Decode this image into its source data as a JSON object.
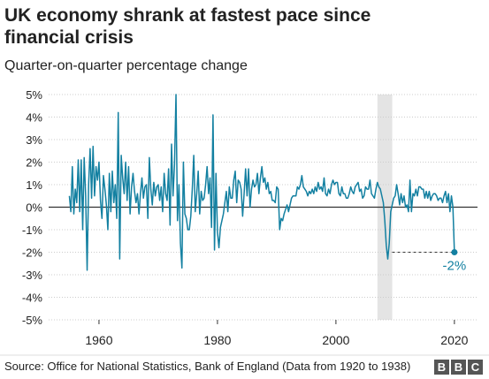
{
  "chart_data": {
    "type": "line",
    "title": [
      "UK economy shrank at fastest pace since",
      "financial crisis"
    ],
    "subtitle": "Quarter-on-quarter percentage change",
    "source": "Source: Office for National Statistics, Bank of England (Data from 1920 to 1938)",
    "logo": [
      "B",
      "B",
      "C"
    ],
    "color": "#1380a1",
    "shaded_period": [
      2007,
      2009.5
    ],
    "annotation": {
      "label": "-2%",
      "x": 2020,
      "y": -2
    },
    "xlim": [
      1951.5,
      2023.9
    ],
    "xticks": [
      1960,
      1980,
      2000,
      2020
    ],
    "ylim": [
      -5,
      5
    ],
    "yticks": [
      {
        "value": 5,
        "label": "5%"
      },
      {
        "value": 4,
        "label": "4%"
      },
      {
        "value": 3,
        "label": "3%"
      },
      {
        "value": 2,
        "label": "2%"
      },
      {
        "value": 1,
        "label": "1%"
      },
      {
        "value": 0,
        "label": "0%"
      },
      {
        "value": -1,
        "label": "-1%"
      },
      {
        "value": -2,
        "label": "-2%"
      },
      {
        "value": -3,
        "label": "-3%"
      },
      {
        "value": -4,
        "label": "-4%"
      },
      {
        "value": -5,
        "label": "-5%"
      }
    ],
    "grid": true,
    "x": [
      1955,
      1955.25,
      1955.5,
      1955.75,
      1956,
      1956.25,
      1956.5,
      1956.75,
      1957,
      1957.25,
      1957.5,
      1957.75,
      1958,
      1958.25,
      1958.5,
      1958.75,
      1959,
      1959.25,
      1959.5,
      1959.75,
      1960,
      1960.25,
      1960.5,
      1960.75,
      1961,
      1961.25,
      1961.5,
      1961.75,
      1962,
      1962.25,
      1962.5,
      1962.75,
      1963,
      1963.25,
      1963.5,
      1963.75,
      1964,
      1964.25,
      1964.5,
      1964.75,
      1965,
      1965.25,
      1965.5,
      1965.75,
      1966,
      1966.25,
      1966.5,
      1966.75,
      1967,
      1967.25,
      1967.5,
      1967.75,
      1968,
      1968.25,
      1968.5,
      1968.75,
      1969,
      1969.25,
      1969.5,
      1969.75,
      1970,
      1970.25,
      1970.5,
      1970.75,
      1971,
      1971.25,
      1971.5,
      1971.75,
      1972,
      1972.25,
      1972.5,
      1972.75,
      1973,
      1973.25,
      1973.5,
      1973.75,
      1974,
      1974.25,
      1974.5,
      1974.75,
      1975,
      1975.25,
      1975.5,
      1975.75,
      1976,
      1976.25,
      1976.5,
      1976.75,
      1977,
      1977.25,
      1977.5,
      1977.75,
      1978,
      1978.25,
      1978.5,
      1978.75,
      1979,
      1979.25,
      1979.5,
      1979.75,
      1980,
      1980.25,
      1980.5,
      1980.75,
      1981,
      1981.25,
      1981.5,
      1981.75,
      1982,
      1982.25,
      1982.5,
      1982.75,
      1983,
      1983.25,
      1983.5,
      1983.75,
      1984,
      1984.25,
      1984.5,
      1984.75,
      1985,
      1985.25,
      1985.5,
      1985.75,
      1986,
      1986.25,
      1986.5,
      1986.75,
      1987,
      1987.25,
      1987.5,
      1987.75,
      1988,
      1988.25,
      1988.5,
      1988.75,
      1989,
      1989.25,
      1989.5,
      1989.75,
      1990,
      1990.25,
      1990.5,
      1990.75,
      1991,
      1991.25,
      1991.5,
      1991.75,
      1992,
      1992.25,
      1992.5,
      1992.75,
      1993,
      1993.25,
      1993.5,
      1993.75,
      1994,
      1994.25,
      1994.5,
      1994.75,
      1995,
      1995.25,
      1995.5,
      1995.75,
      1996,
      1996.25,
      1996.5,
      1996.75,
      1997,
      1997.25,
      1997.5,
      1997.75,
      1998,
      1998.25,
      1998.5,
      1998.75,
      1999,
      1999.25,
      1999.5,
      1999.75,
      2000,
      2000.25,
      2000.5,
      2000.75,
      2001,
      2001.25,
      2001.5,
      2001.75,
      2002,
      2002.25,
      2002.5,
      2002.75,
      2003,
      2003.25,
      2003.5,
      2003.75,
      2004,
      2004.25,
      2004.5,
      2004.75,
      2005,
      2005.25,
      2005.5,
      2005.75,
      2006,
      2006.25,
      2006.5,
      2006.75,
      2007,
      2007.25,
      2007.5,
      2007.75,
      2008,
      2008.25,
      2008.5,
      2008.75,
      2009,
      2009.25,
      2009.5,
      2009.75,
      2010,
      2010.25,
      2010.5,
      2010.75,
      2011,
      2011.25,
      2011.5,
      2011.75,
      2012,
      2012.25,
      2012.5,
      2012.75,
      2013,
      2013.25,
      2013.5,
      2013.75,
      2014,
      2014.25,
      2014.5,
      2014.75,
      2015,
      2015.25,
      2015.5,
      2015.75,
      2016,
      2016.25,
      2016.5,
      2016.75,
      2017,
      2017.25,
      2017.5,
      2017.75,
      2018,
      2018.25,
      2018.5,
      2018.75,
      2019,
      2019.25,
      2019.5,
      2019.75,
      2020
    ],
    "values": [
      0.5,
      -0.2,
      1.8,
      -0.3,
      0.8,
      0.2,
      2.1,
      -0.2,
      2.1,
      -1.0,
      2.2,
      0.5,
      -2.8,
      1.0,
      2.6,
      0.4,
      2.7,
      0.5,
      1.8,
      1.2,
      2.0,
      0.3,
      -0.5,
      1.4,
      0.8,
      0.1,
      -1.0,
      1.5,
      -0.2,
      1.6,
      0.2,
      1.0,
      -0.5,
      4.2,
      -2.3,
      2.3,
      1.3,
      0.6,
      2.0,
      0.3,
      1.8,
      -0.3,
      0.9,
      1.5,
      0.7,
      0.2,
      0.6,
      -0.3,
      0.6,
      1.3,
      0.4,
      0.9,
      1.0,
      -0.5,
      2.2,
      0.8,
      0.1,
      1.1,
      0.5,
      0.9,
      1.0,
      0.3,
      0.9,
      -0.2,
      1.5,
      0.6,
      0.3,
      1.7,
      -0.8,
      2.8,
      0.5,
      1.9,
      5.0,
      -0.6,
      1.0,
      -1.6,
      -2.7,
      2.0,
      -0.3,
      -0.5,
      -1.0,
      -1.0,
      -0.4,
      0.8,
      2.3,
      -0.2,
      0.6,
      1.6,
      -0.3,
      0.7,
      0.3,
      0.4,
      1.0,
      1.8,
      0.6,
      1.3,
      -0.9,
      4.1,
      -1.9,
      1.5,
      -1.1,
      -1.8,
      -0.9,
      -0.6,
      -0.3,
      0.2,
      0.7,
      -0.2,
      0.9,
      0.4,
      0.4,
      1.2,
      1.6,
      0.2,
      1.2,
      1.1,
      0.8,
      -0.4,
      0.6,
      1.7,
      0.5,
      1.7,
      0.0,
      0.8,
      1.2,
      0.9,
      1.0,
      1.5,
      0.6,
      1.3,
      1.8,
      1.1,
      1.3,
      0.8,
      1.1,
      0.6,
      0.7,
      0.3,
      0.3,
      0.2,
      0.9,
      0.8,
      -1.0,
      -0.5,
      -0.6,
      -0.3,
      -0.1,
      0.1,
      -0.2,
      0.1,
      0.4,
      0.5,
      0.5,
      0.5,
      0.9,
      0.8,
      1.0,
      1.4,
      0.9,
      0.8,
      0.7,
      0.5,
      0.7,
      0.6,
      0.8,
      0.6,
      0.9,
      0.7,
      1.1,
      0.8,
      0.9,
      0.7,
      1.3,
      0.6,
      0.5,
      0.8,
      0.6,
      1.0,
      1.2,
      1.0,
      1.1,
      1.1,
      0.6,
      0.5,
      0.9,
      0.6,
      0.6,
      0.4,
      0.4,
      0.6,
      0.9,
      0.7,
      0.6,
      0.9,
      1.0,
      1.1,
      0.7,
      0.8,
      0.4,
      0.5,
      0.9,
      0.8,
      0.8,
      1.2,
      0.6,
      0.5,
      0.4,
      0.8,
      1.1,
      0.9,
      0.8,
      0.5,
      0.2,
      -0.6,
      -1.7,
      -2.3,
      -1.6,
      -0.2,
      0.1,
      0.4,
      0.5,
      1.0,
      0.6,
      0.1,
      0.6,
      0.2,
      0.5,
      0.0,
      0.1,
      -0.2,
      1.2,
      -0.2,
      0.6,
      0.5,
      0.8,
      0.5,
      0.9,
      0.9,
      0.8,
      0.8,
      0.4,
      0.7,
      0.4,
      0.7,
      0.3,
      0.5,
      0.6,
      0.6,
      0.5,
      0.3,
      0.4,
      0.4,
      0.2,
      0.5,
      0.7,
      0.2,
      0.6,
      -0.2,
      0.5,
      0.0,
      -2.0
    ]
  }
}
